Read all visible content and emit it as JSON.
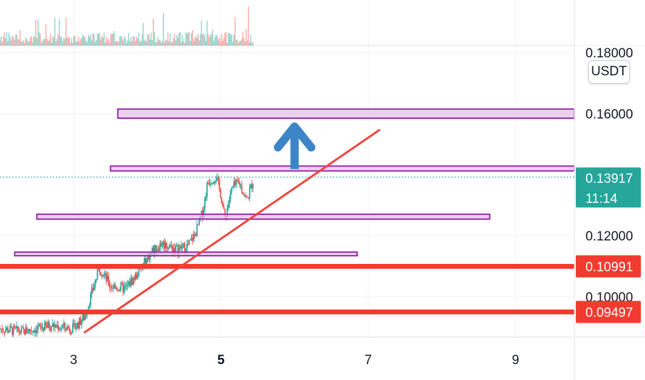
{
  "colors": {
    "up": "#26a69a",
    "down": "#ef5350",
    "zone_fill": "#e1bee7",
    "zone_stroke": "#9c27b0",
    "level_line": "#f23b30",
    "trendline": "#f0443a",
    "arrow": "#3d85c6",
    "grid": "#eef0f3",
    "last_price": "#26a69a"
  },
  "currency": "USDT",
  "chart_data": {
    "type": "candlestick",
    "x_axis": {
      "range": [
        2.0,
        9.8
      ],
      "ticks": [
        {
          "value": 3,
          "label": "3",
          "bold": false
        },
        {
          "value": 5,
          "label": "5",
          "bold": true
        },
        {
          "value": 7,
          "label": "7",
          "bold": false
        },
        {
          "value": 9,
          "label": "9",
          "bold": false
        }
      ]
    },
    "y_axis": {
      "range": [
        0.0867,
        0.1823
      ],
      "ticks": [
        {
          "value": 0.18,
          "label": "0.18000"
        },
        {
          "value": 0.16,
          "label": "0.16000"
        },
        {
          "value": 0.12,
          "label": "0.12000"
        },
        {
          "value": 0.1,
          "label": "0.10000"
        }
      ]
    },
    "price_path": [
      [
        2.0,
        0.0895
      ],
      [
        2.3,
        0.0885
      ],
      [
        2.7,
        0.0905
      ],
      [
        3.0,
        0.0895
      ],
      [
        3.15,
        0.0935
      ],
      [
        3.3,
        0.1055
      ],
      [
        3.35,
        0.1095
      ],
      [
        3.5,
        0.1035
      ],
      [
        3.7,
        0.1025
      ],
      [
        3.9,
        0.1085
      ],
      [
        4.05,
        0.1145
      ],
      [
        4.2,
        0.1175
      ],
      [
        4.4,
        0.1155
      ],
      [
        4.55,
        0.1165
      ],
      [
        4.65,
        0.1205
      ],
      [
        4.75,
        0.1275
      ],
      [
        4.82,
        0.1375
      ],
      [
        4.93,
        0.1395
      ],
      [
        5.0,
        0.1335
      ],
      [
        5.05,
        0.1255
      ],
      [
        5.15,
        0.1355
      ],
      [
        5.25,
        0.1375
      ],
      [
        5.35,
        0.1315
      ],
      [
        5.45,
        0.1392
      ]
    ],
    "zones": [
      {
        "x0": 3.6,
        "x1": 9.8,
        "low": 0.1585,
        "high": 0.1615
      },
      {
        "x0": 3.5,
        "x1": 9.8,
        "low": 0.1412,
        "high": 0.1428
      },
      {
        "x0": 2.5,
        "x1": 8.65,
        "low": 0.1254,
        "high": 0.127
      },
      {
        "x0": 2.2,
        "x1": 6.85,
        "low": 0.1134,
        "high": 0.1146
      }
    ],
    "levels": [
      {
        "price": 0.10991,
        "label": "0.10991"
      },
      {
        "price": 0.09497,
        "label": "0.09497"
      }
    ],
    "trendline": {
      "x0": 3.15,
      "y0": 0.0883,
      "x1": 7.15,
      "y1": 0.1546
    },
    "arrow": {
      "x": 6.0,
      "from": 0.1418,
      "to": 0.158
    },
    "last_price": {
      "price": 0.13917,
      "label": "0.13917",
      "countdown": "11:14"
    }
  }
}
